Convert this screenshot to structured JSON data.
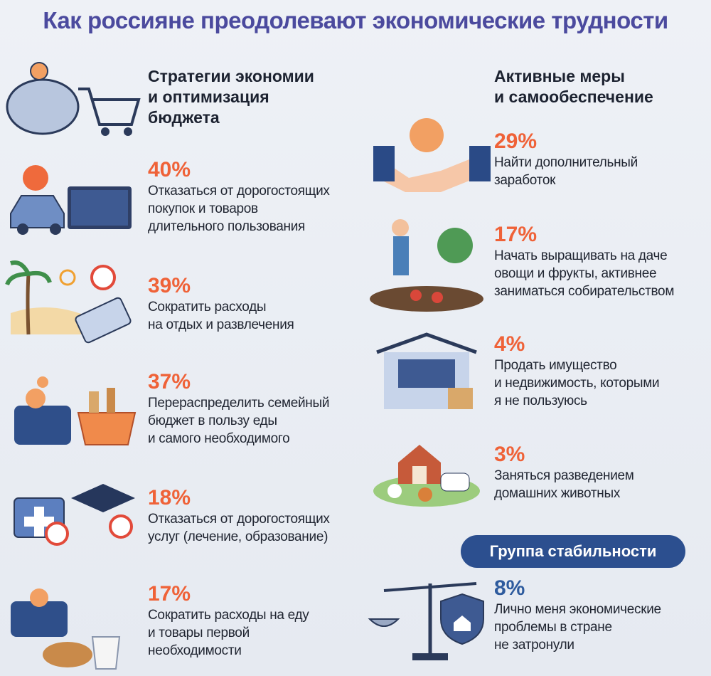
{
  "title": "Как россияне преодолевают экономические трудности",
  "left": {
    "heading": [
      "Стратегии экономии",
      "и оптимизация",
      "бюджета"
    ],
    "items": [
      {
        "percent": "40%",
        "text": [
          "Отказаться от дорогостоящих",
          "покупок и товаров",
          "длительного пользования"
        ]
      },
      {
        "percent": "39%",
        "text": [
          "Сократить расходы",
          "на отдых и развлечения"
        ]
      },
      {
        "percent": "37%",
        "text": [
          "Перераспределить семейный",
          "бюджет в пользу еды",
          "и самого необходимого"
        ]
      },
      {
        "percent": "18%",
        "text": [
          "Отказаться от дорогостоящих",
          "услуг (лечение, образование)"
        ]
      },
      {
        "percent": "17%",
        "text": [
          "Сократить расходы на еду",
          "и товары первой",
          "необходимости"
        ]
      }
    ]
  },
  "right": {
    "heading": [
      "Активные меры",
      "и самообеспечение"
    ],
    "items": [
      {
        "percent": "29%",
        "text": [
          "Найти дополнительный",
          "заработок"
        ]
      },
      {
        "percent": "17%",
        "text": [
          "Начать выращивать на даче",
          "овощи и фрукты, активнее",
          "заниматься собирательством"
        ]
      },
      {
        "percent": "4%",
        "text": [
          "Продать имущество",
          "и недвижимость, которыми",
          "я не пользуюсь"
        ]
      },
      {
        "percent": "3%",
        "text": [
          "Заняться разведением",
          "домашних животных"
        ]
      }
    ]
  },
  "stability": {
    "badge": "Группа стабильности",
    "percent": "8%",
    "text": [
      "Лично меня экономические",
      "проблемы в стране",
      "не затронули"
    ]
  }
}
